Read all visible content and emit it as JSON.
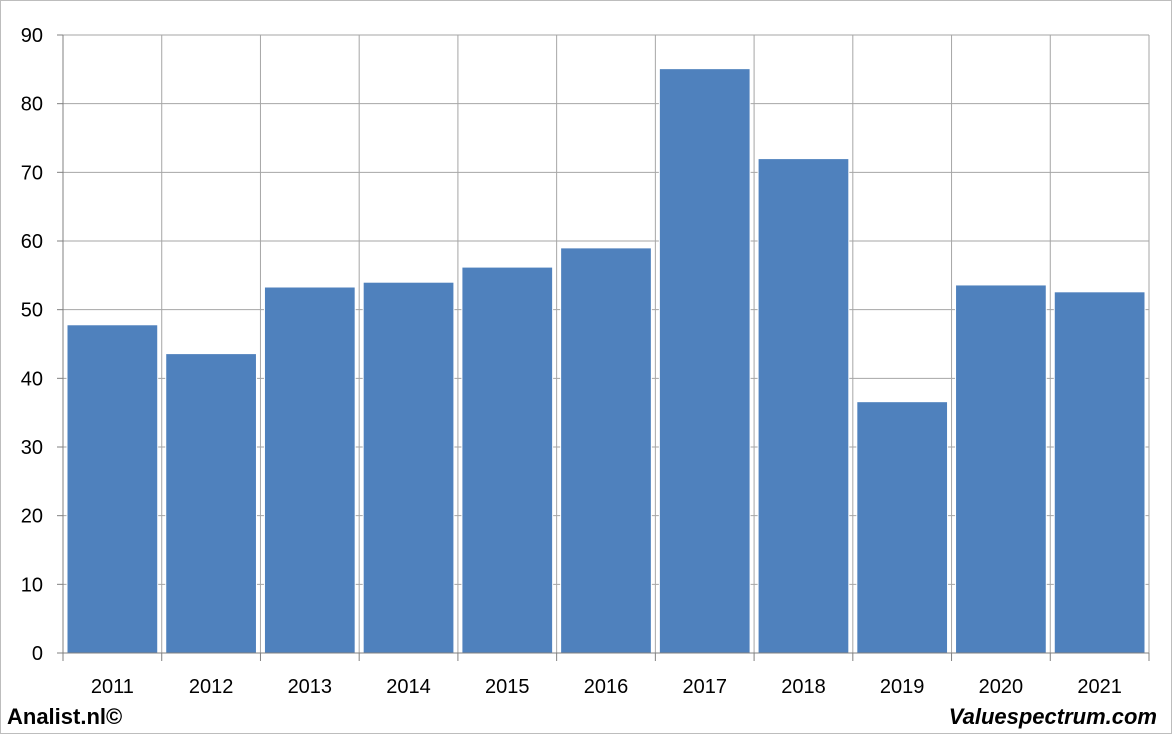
{
  "chart_data": {
    "type": "bar",
    "title": "",
    "xlabel": "",
    "ylabel": "",
    "categories": [
      "2011",
      "2012",
      "2013",
      "2014",
      "2015",
      "2016",
      "2017",
      "2018",
      "2019",
      "2020",
      "2021"
    ],
    "values": [
      47.8,
      43.6,
      53.3,
      54.0,
      56.2,
      59.0,
      85.1,
      72.0,
      36.6,
      53.6,
      52.6
    ],
    "ylim": [
      0,
      90
    ],
    "yticks": [
      "0",
      "10",
      "20",
      "30",
      "40",
      "50",
      "60",
      "70",
      "80",
      "90"
    ],
    "grid": true,
    "legend": "none",
    "bar_color": "#4f81bd",
    "grid_color": "#a6a6a6"
  },
  "footer": {
    "left": "Analist.nl©",
    "right": "Valuespectrum.com"
  }
}
